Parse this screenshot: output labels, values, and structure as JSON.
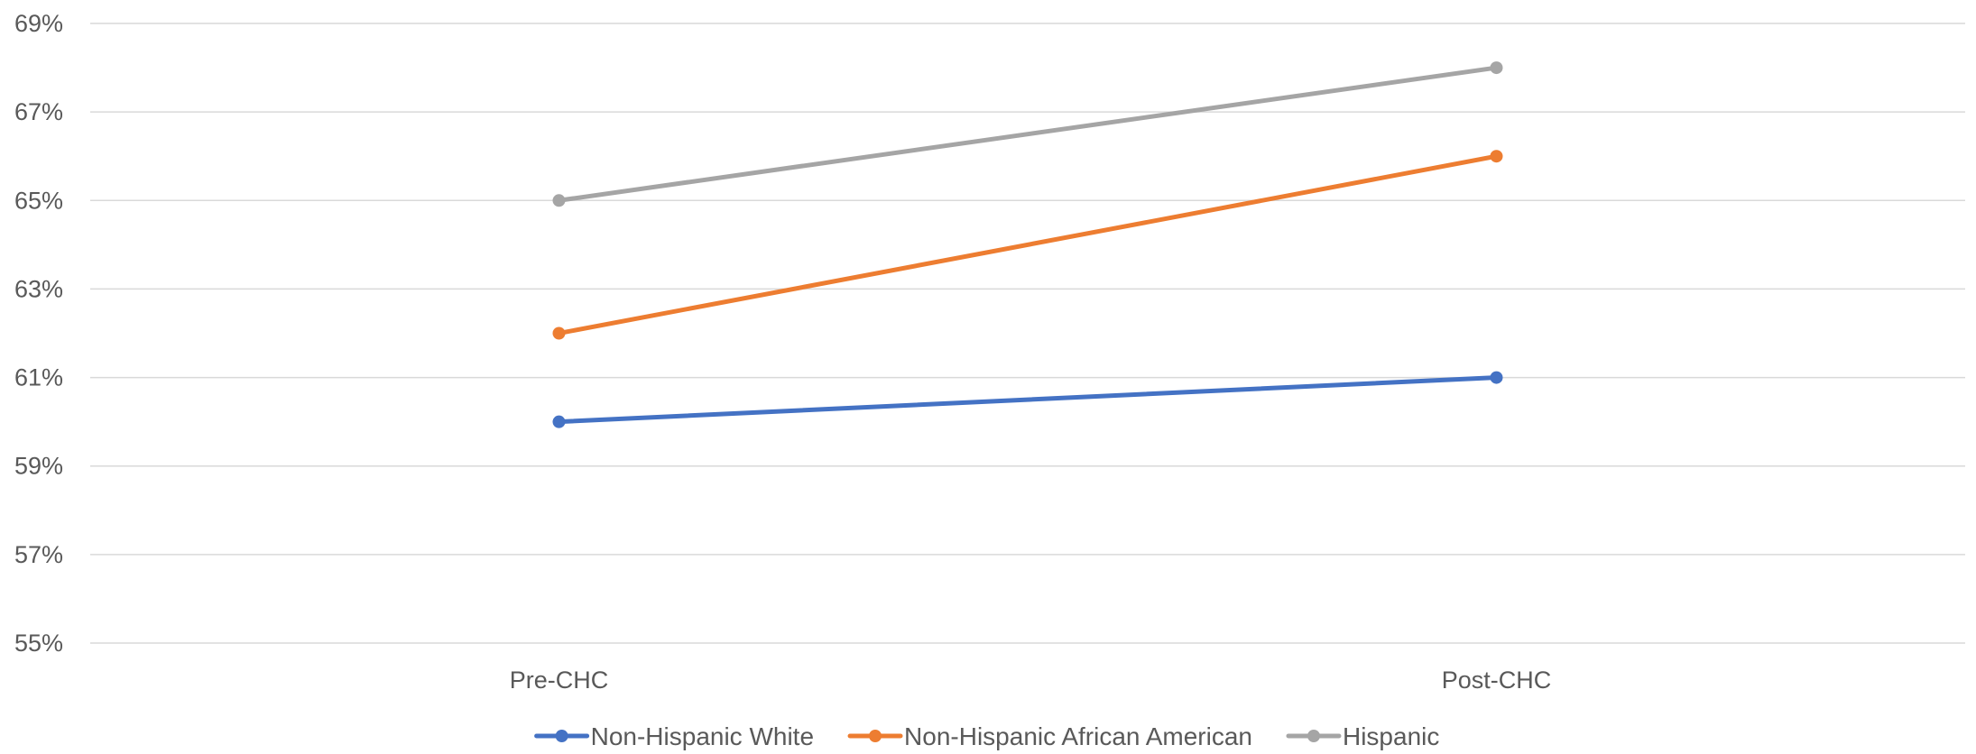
{
  "chart_data": {
    "type": "line",
    "title": "",
    "xlabel": "",
    "ylabel": "",
    "categories": [
      "Pre-CHC",
      "Post-CHC"
    ],
    "y_ticks": [
      "55%",
      "57%",
      "59%",
      "61%",
      "63%",
      "65%",
      "67%",
      "69%"
    ],
    "y_tick_values": [
      55,
      57,
      59,
      61,
      63,
      65,
      67,
      69
    ],
    "ylim": [
      55,
      69
    ],
    "grid": true,
    "legend_position": "bottom",
    "series": [
      {
        "name": "Non-Hispanic White",
        "values": [
          60,
          61
        ],
        "color": "#4472c4"
      },
      {
        "name": "Non-Hispanic African American",
        "values": [
          62,
          66
        ],
        "color": "#ed7d31"
      },
      {
        "name": "Hispanic",
        "values": [
          65,
          68
        ],
        "color": "#a5a5a5"
      }
    ]
  }
}
